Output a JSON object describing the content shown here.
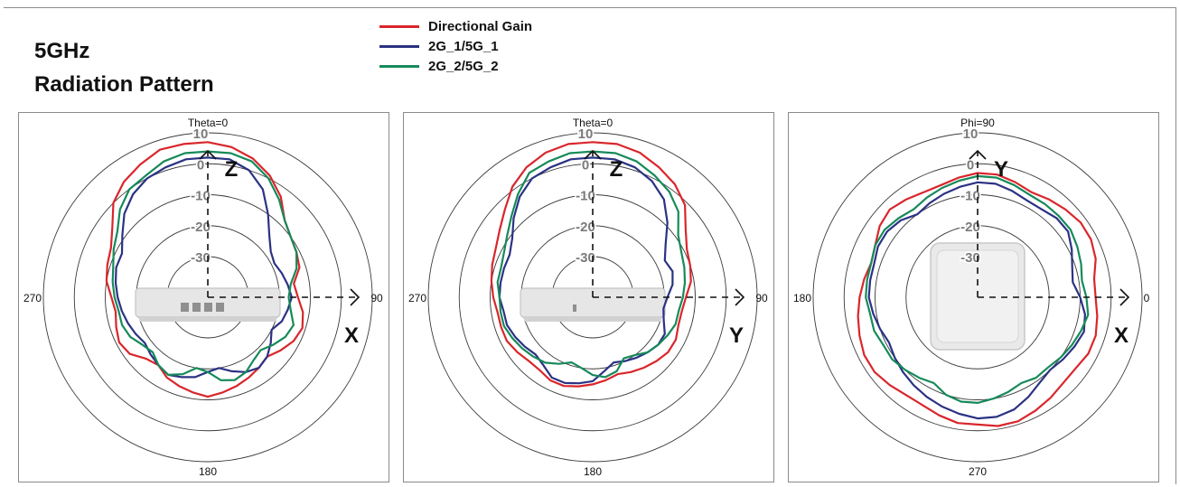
{
  "chart_data": {
    "type": "polar",
    "title_lines": [
      "5GHz",
      "Radiation Pattern"
    ],
    "legend": [
      {
        "name": "Directional Gain",
        "color": "#d9262b"
      },
      {
        "name": "2G_1/5G_1",
        "color": "#2b3283"
      },
      {
        "name": "2G_2/5G_2",
        "color": "#168a5a"
      }
    ],
    "radial_ticks": [
      "10",
      "0",
      "-10",
      "-20",
      "-30"
    ],
    "panels": [
      {
        "top_label": "Theta=0",
        "left_label": "270",
        "right_label": "90",
        "bottom_label": "180",
        "axis_up": "Z",
        "axis_right": "X",
        "series": [
          {
            "name": "Directional Gain",
            "values": [
              7,
              6,
              4,
              1,
              -3,
              -8,
              -10,
              -11,
              -12,
              -15,
              -14,
              -12,
              -11,
              -12,
              -14,
              -16,
              -15,
              -14,
              -13,
              -12,
              -11,
              -12,
              -13,
              -14,
              -16,
              -15,
              -12,
              -11,
              -12,
              -13,
              -12,
              -10,
              -9,
              -8,
              -5,
              0,
              3,
              5,
              7,
              7
            ]
          },
          {
            "name": "2G_1/5G_1",
            "values": [
              2,
              2,
              0,
              -4,
              -10,
              -15,
              -18,
              -19,
              -18,
              -17,
              -16,
              -17,
              -18,
              -20,
              -18,
              -16,
              -15,
              -16,
              -18,
              -20,
              -19,
              -17,
              -16,
              -15,
              -16,
              -17,
              -18,
              -17,
              -16,
              -15,
              -14,
              -13,
              -12,
              -12,
              -9,
              -5,
              -2,
              0,
              1,
              2
            ]
          },
          {
            "name": "2G_2/5G_2",
            "values": [
              4,
              4,
              3,
              0,
              -4,
              -8,
              -10,
              -11,
              -13,
              -16,
              -17,
              -16,
              -14,
              -15,
              -17,
              -19,
              -18,
              -16,
              -15,
              -16,
              -19,
              -20,
              -17,
              -15,
              -16,
              -18,
              -17,
              -15,
              -14,
              -14,
              -13,
              -12,
              -11,
              -9,
              -7,
              -3,
              0,
              1,
              3,
              4
            ]
          }
        ]
      },
      {
        "top_label": "Theta=0",
        "left_label": "270",
        "right_label": "90",
        "bottom_label": "180",
        "axis_up": "Z",
        "axis_right": "Y",
        "series": [
          {
            "name": "Directional Gain",
            "values": [
              7,
              7,
              6,
              4,
              2,
              -1,
              -6,
              -9,
              -10,
              -11,
              -13,
              -14,
              -14,
              -13,
              -13,
              -14,
              -15,
              -16,
              -17,
              -16,
              -15,
              -14,
              -13,
              -13,
              -14,
              -14,
              -13,
              -12,
              -12,
              -12,
              -11,
              -10,
              -9,
              -8,
              -6,
              -3,
              1,
              4,
              6,
              7
            ]
          },
          {
            "name": "2G_1/5G_1",
            "values": [
              2,
              2,
              1,
              -1,
              -4,
              -9,
              -14,
              -17,
              -16,
              -17,
              -19,
              -20,
              -19,
              -17,
              -17,
              -18,
              -19,
              -20,
              -21,
              -19,
              -16,
              -15,
              -14,
              -14,
              -16,
              -17,
              -16,
              -15,
              -14,
              -14,
              -13,
              -13,
              -13,
              -13,
              -11,
              -7,
              -3,
              0,
              1,
              2
            ]
          },
          {
            "name": "2G_2/5G_2",
            "values": [
              4,
              4,
              3,
              1,
              -1,
              -4,
              -9,
              -11,
              -12,
              -13,
              -14,
              -15,
              -15,
              -16,
              -17,
              -18,
              -20,
              -21,
              -18,
              -17,
              -18,
              -20,
              -21,
              -19,
              -17,
              -16,
              -15,
              -14,
              -13,
              -13,
              -13,
              -12,
              -12,
              -11,
              -9,
              -6,
              -2,
              2,
              3,
              4
            ]
          }
        ]
      },
      {
        "top_label": "Phi=90",
        "left_label": "180",
        "right_label": "0",
        "bottom_label": "270",
        "axis_up": "Y",
        "axis_right": "X",
        "series": [
          {
            "name": "Directional Gain",
            "values": [
              -3,
              -3,
              -4,
              -5,
              -4,
              -3,
              -2,
              -2,
              -3,
              -5,
              -5,
              -4,
              -3,
              -3,
              -4,
              -4,
              -3,
              -2,
              -1,
              -1,
              -2,
              -2,
              -3,
              -4,
              -4,
              -3,
              -2,
              -2,
              -3,
              -4,
              -5,
              -6,
              -7,
              -6,
              -4,
              -3,
              -4,
              -5,
              -5,
              -4
            ]
          },
          {
            "name": "2G_1/5G_1",
            "values": [
              -6,
              -6,
              -7,
              -8,
              -8,
              -7,
              -7,
              -9,
              -11,
              -12,
              -10,
              -8,
              -7,
              -8,
              -9,
              -10,
              -9,
              -7,
              -5,
              -4,
              -4,
              -5,
              -6,
              -7,
              -8,
              -9,
              -10,
              -11,
              -10,
              -9,
              -8,
              -8,
              -8,
              -7,
              -7,
              -8,
              -10,
              -9,
              -8,
              -7
            ]
          },
          {
            "name": "2G_2/5G_2",
            "values": [
              -4,
              -4,
              -5,
              -6,
              -6,
              -6,
              -6,
              -7,
              -8,
              -9,
              -8,
              -7,
              -8,
              -9,
              -10,
              -11,
              -11,
              -12,
              -11,
              -10,
              -9,
              -9,
              -10,
              -12,
              -11,
              -10,
              -9,
              -9,
              -8,
              -8,
              -7,
              -7,
              -7,
              -6,
              -6,
              -7,
              -8,
              -7,
              -6,
              -5
            ]
          }
        ]
      }
    ],
    "r_range": [
      -30,
      10
    ]
  }
}
